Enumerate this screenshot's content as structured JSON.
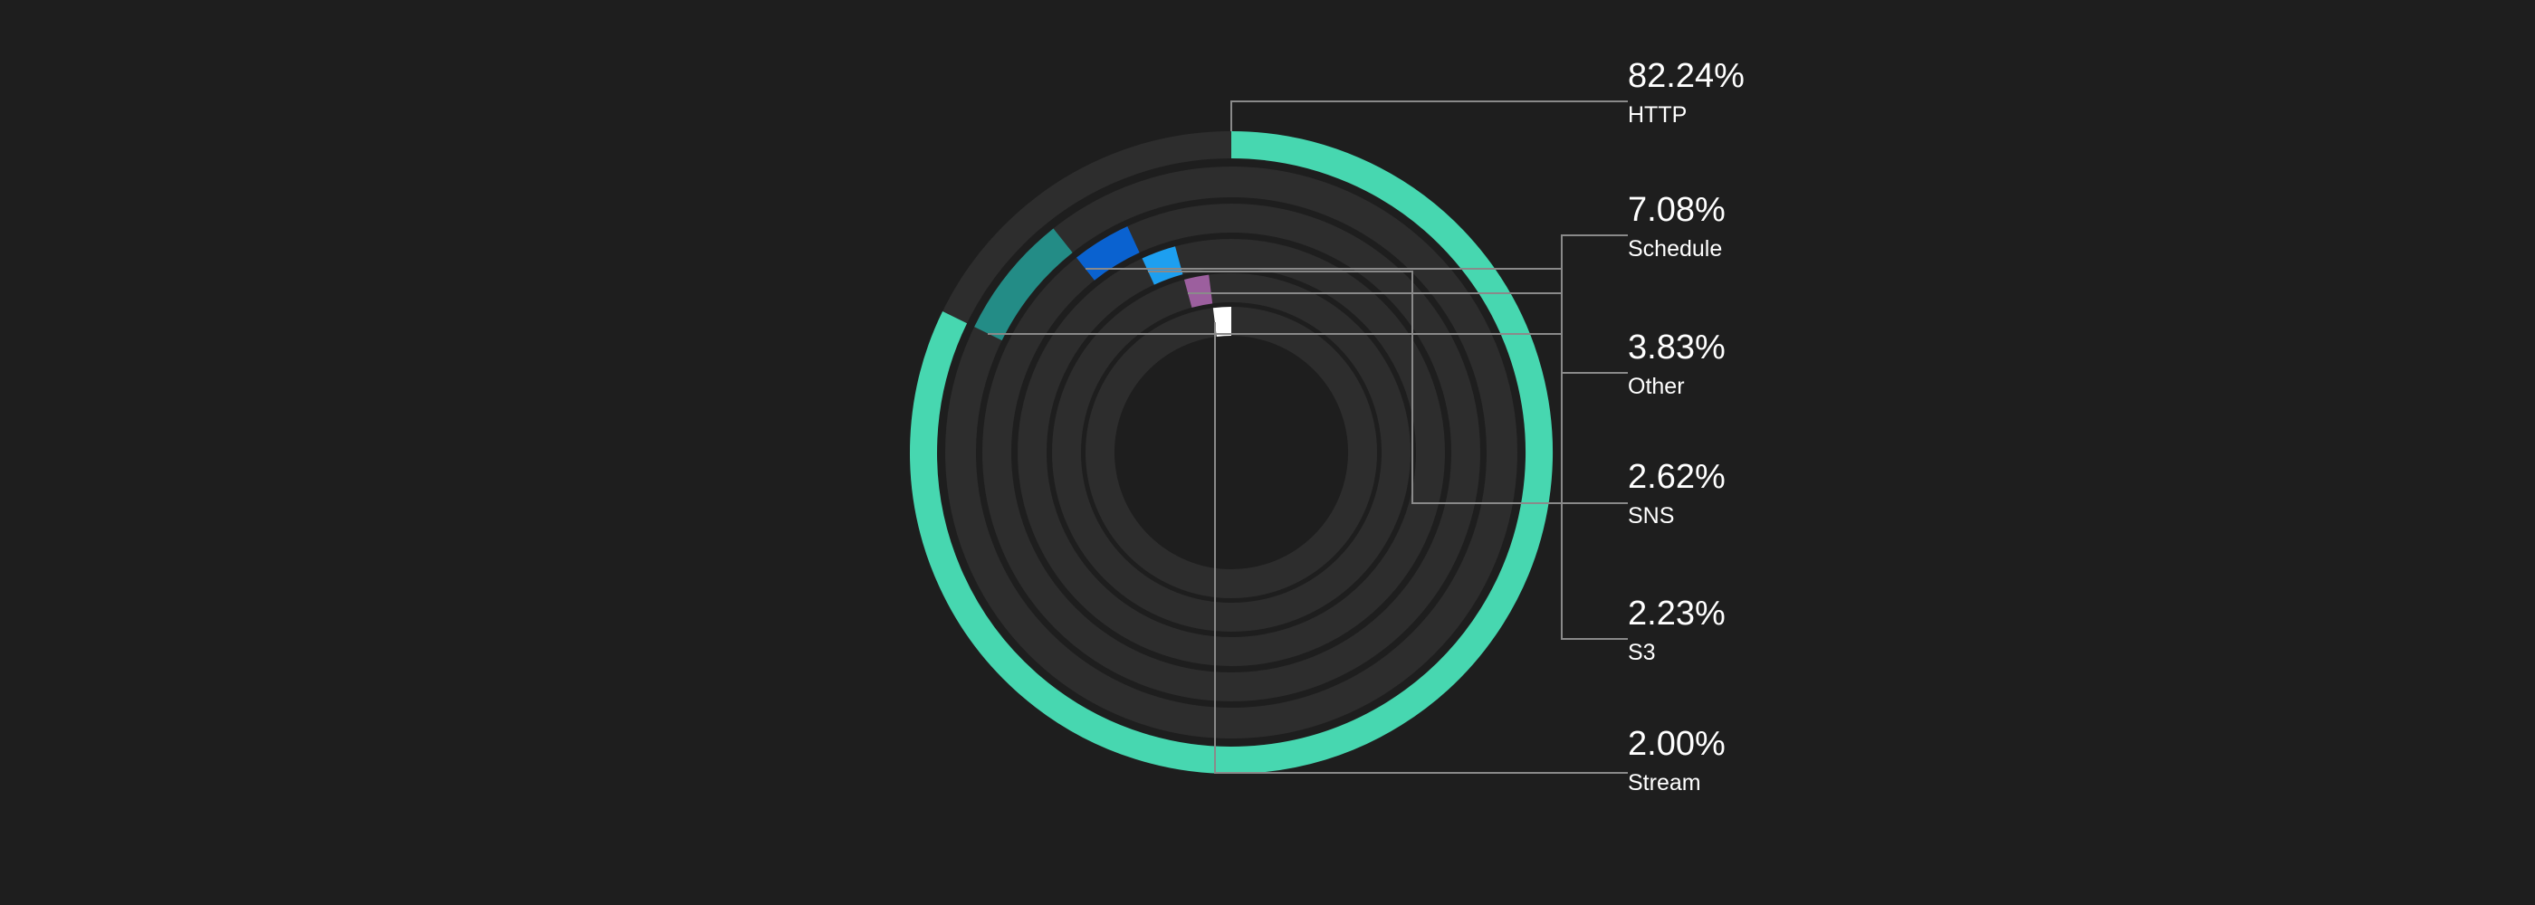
{
  "chart_data": {
    "type": "radial-bar",
    "legend_placement": "right",
    "series": [
      {
        "name": "HTTP",
        "value": 82.24,
        "label": "82.24%",
        "color": "#47d7b0"
      },
      {
        "name": "Schedule",
        "value": 7.08,
        "label": "7.08%",
        "color": "#238c86"
      },
      {
        "name": "Other",
        "value": 3.83,
        "label": "3.83%",
        "color": "#0a62d0"
      },
      {
        "name": "SNS",
        "value": 2.62,
        "label": "2.62%",
        "color": "#1d9ff0"
      },
      {
        "name": "S3",
        "value": 2.23,
        "label": "2.23%",
        "color": "#9c5f9e"
      },
      {
        "name": "Stream",
        "value": 2.0,
        "label": "2.00%",
        "color": "#ffffff"
      }
    ]
  }
}
